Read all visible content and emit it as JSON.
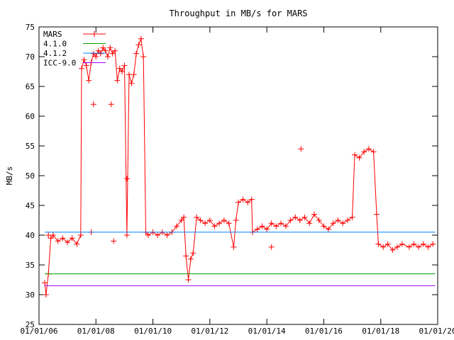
{
  "chart_data": {
    "type": "line",
    "title": "Throughput in MB/s for MARS",
    "xlabel": "",
    "ylabel": "MB/s",
    "ylim": [
      25,
      75
    ],
    "yticks": [
      25,
      30,
      35,
      40,
      45,
      50,
      55,
      60,
      65,
      70,
      75
    ],
    "xlim": [
      "2006-01-01",
      "2020-01-01"
    ],
    "xticks": [
      {
        "date": "2006-01-01",
        "label": "01/01/06"
      },
      {
        "date": "2008-01-01",
        "label": "01/01/08"
      },
      {
        "date": "2010-01-01",
        "label": "01/01/10"
      },
      {
        "date": "2012-01-01",
        "label": "01/01/12"
      },
      {
        "date": "2014-01-01",
        "label": "01/01/14"
      },
      {
        "date": "2016-01-01",
        "label": "01/01/16"
      },
      {
        "date": "2018-01-01",
        "label": "01/01/18"
      },
      {
        "date": "2020-01-01",
        "label": "01/01/20"
      }
    ],
    "grid": false,
    "legend_position": "top-left",
    "series": [
      {
        "name": "MARS",
        "color": "#ff0000",
        "marker": "plus",
        "points": [
          [
            "2006-03-15",
            32.0
          ],
          [
            "2006-04-01",
            30.0
          ],
          [
            "2006-05-01",
            33.5
          ],
          [
            "2006-06-01",
            39.5
          ],
          [
            "2006-07-01",
            40.0
          ],
          [
            "2006-09-01",
            39.0
          ],
          [
            "2006-11-01",
            39.5
          ],
          [
            "2007-01-01",
            38.8
          ],
          [
            "2007-03-01",
            39.5
          ],
          [
            "2007-05-01",
            38.5
          ],
          [
            "2007-06-20",
            40.0
          ],
          [
            "2007-07-01",
            68.0
          ],
          [
            "2007-08-01",
            69.5
          ],
          [
            "2007-09-01",
            68.5
          ],
          [
            "2007-10-01",
            66.0
          ],
          [
            "2007-11-01",
            69.0
          ],
          [
            "2007-12-01",
            70.5
          ],
          [
            "2008-01-01",
            70.0
          ],
          [
            "2008-02-01",
            71.0
          ],
          [
            "2008-03-01",
            70.5
          ],
          [
            "2008-04-01",
            71.5
          ],
          [
            "2008-05-01",
            71.0
          ],
          [
            "2008-06-01",
            70.0
          ],
          [
            "2008-07-01",
            71.5
          ],
          [
            "2008-08-01",
            70.5
          ],
          [
            "2008-09-01",
            71.0
          ],
          [
            "2008-10-01",
            66.0
          ],
          [
            "2008-11-01",
            68.0
          ],
          [
            "2008-12-01",
            67.5
          ],
          [
            "2009-01-01",
            68.5
          ],
          [
            "2009-02-01",
            40.0
          ],
          [
            "2009-03-01",
            67.0
          ],
          [
            "2009-04-01",
            65.5
          ],
          [
            "2009-05-01",
            67.0
          ],
          [
            "2009-06-01",
            70.5
          ],
          [
            "2009-07-01",
            72.0
          ],
          [
            "2009-08-01",
            73.0
          ],
          [
            "2009-09-01",
            70.0
          ],
          [
            "2009-10-01",
            40.5
          ],
          [
            "2009-11-01",
            40.0
          ],
          [
            "2010-01-01",
            40.5
          ],
          [
            "2010-03-01",
            40.0
          ],
          [
            "2010-05-01",
            40.5
          ],
          [
            "2010-07-01",
            40.0
          ],
          [
            "2010-09-01",
            40.5
          ],
          [
            "2010-11-01",
            41.5
          ],
          [
            "2011-01-01",
            42.5
          ],
          [
            "2011-02-01",
            43.0
          ],
          [
            "2011-03-01",
            36.5
          ],
          [
            "2011-04-01",
            32.5
          ],
          [
            "2011-05-01",
            36.0
          ],
          [
            "2011-06-01",
            37.0
          ],
          [
            "2011-07-15",
            43.0
          ],
          [
            "2011-09-01",
            42.5
          ],
          [
            "2011-11-01",
            42.0
          ],
          [
            "2012-01-01",
            42.5
          ],
          [
            "2012-03-01",
            41.5
          ],
          [
            "2012-05-01",
            42.0
          ],
          [
            "2012-07-01",
            42.5
          ],
          [
            "2012-09-01",
            42.0
          ],
          [
            "2012-11-01",
            38.0
          ],
          [
            "2012-12-01",
            42.5
          ],
          [
            "2013-01-01",
            45.5
          ],
          [
            "2013-03-01",
            46.0
          ],
          [
            "2013-05-01",
            45.5
          ],
          [
            "2013-06-20",
            46.0
          ],
          [
            "2013-07-01",
            40.5
          ],
          [
            "2013-09-01",
            41.0
          ],
          [
            "2013-11-01",
            41.5
          ],
          [
            "2014-01-01",
            41.0
          ],
          [
            "2014-03-01",
            42.0
          ],
          [
            "2014-05-01",
            41.5
          ],
          [
            "2014-07-01",
            42.0
          ],
          [
            "2014-09-01",
            41.5
          ],
          [
            "2014-11-01",
            42.5
          ],
          [
            "2015-01-01",
            43.0
          ],
          [
            "2015-03-01",
            42.5
          ],
          [
            "2015-05-01",
            43.0
          ],
          [
            "2015-07-01",
            42.0
          ],
          [
            "2015-09-01",
            43.5
          ],
          [
            "2015-11-01",
            42.5
          ],
          [
            "2016-01-01",
            41.5
          ],
          [
            "2016-03-01",
            41.0
          ],
          [
            "2016-05-01",
            42.0
          ],
          [
            "2016-07-01",
            42.5
          ],
          [
            "2016-09-01",
            42.0
          ],
          [
            "2016-11-01",
            42.5
          ],
          [
            "2017-01-01",
            43.0
          ],
          [
            "2017-02-01",
            53.5
          ],
          [
            "2017-04-01",
            53.0
          ],
          [
            "2017-06-01",
            54.0
          ],
          [
            "2017-08-01",
            54.5
          ],
          [
            "2017-10-01",
            54.0
          ],
          [
            "2017-11-10",
            43.5
          ],
          [
            "2017-12-01",
            38.5
          ],
          [
            "2018-02-01",
            38.0
          ],
          [
            "2018-04-01",
            38.5
          ],
          [
            "2018-06-01",
            37.5
          ],
          [
            "2018-08-01",
            38.0
          ],
          [
            "2018-10-01",
            38.5
          ],
          [
            "2019-01-01",
            38.0
          ],
          [
            "2019-03-01",
            38.5
          ],
          [
            "2019-05-01",
            38.0
          ],
          [
            "2019-07-01",
            38.5
          ],
          [
            "2019-09-01",
            38.0
          ],
          [
            "2019-11-01",
            38.5
          ]
        ],
        "spikes": [
          [
            "2006-05-01",
            40.0
          ],
          [
            "2007-11-01",
            40.5
          ],
          [
            "2007-12-01",
            62.0
          ],
          [
            "2008-08-15",
            39.0
          ],
          [
            "2009-02-01",
            49.5
          ],
          [
            "2015-03-15",
            54.5
          ],
          [
            "2014-03-01",
            38.0
          ],
          [
            "2008-07-15",
            62.0
          ]
        ]
      },
      {
        "name": "4.1.0",
        "color": "#00a000",
        "points": [
          [
            "2006-03-15",
            33.5
          ],
          [
            "2019-12-01",
            33.5
          ]
        ]
      },
      {
        "name": "4.1.2",
        "color": "#0080ff",
        "points": [
          [
            "2006-03-15",
            40.5
          ],
          [
            "2019-12-01",
            40.5
          ]
        ]
      },
      {
        "name": "ICC-9.0",
        "color": "#a000ff",
        "points": [
          [
            "2006-03-15",
            31.5
          ],
          [
            "2019-12-01",
            31.5
          ]
        ]
      }
    ]
  }
}
